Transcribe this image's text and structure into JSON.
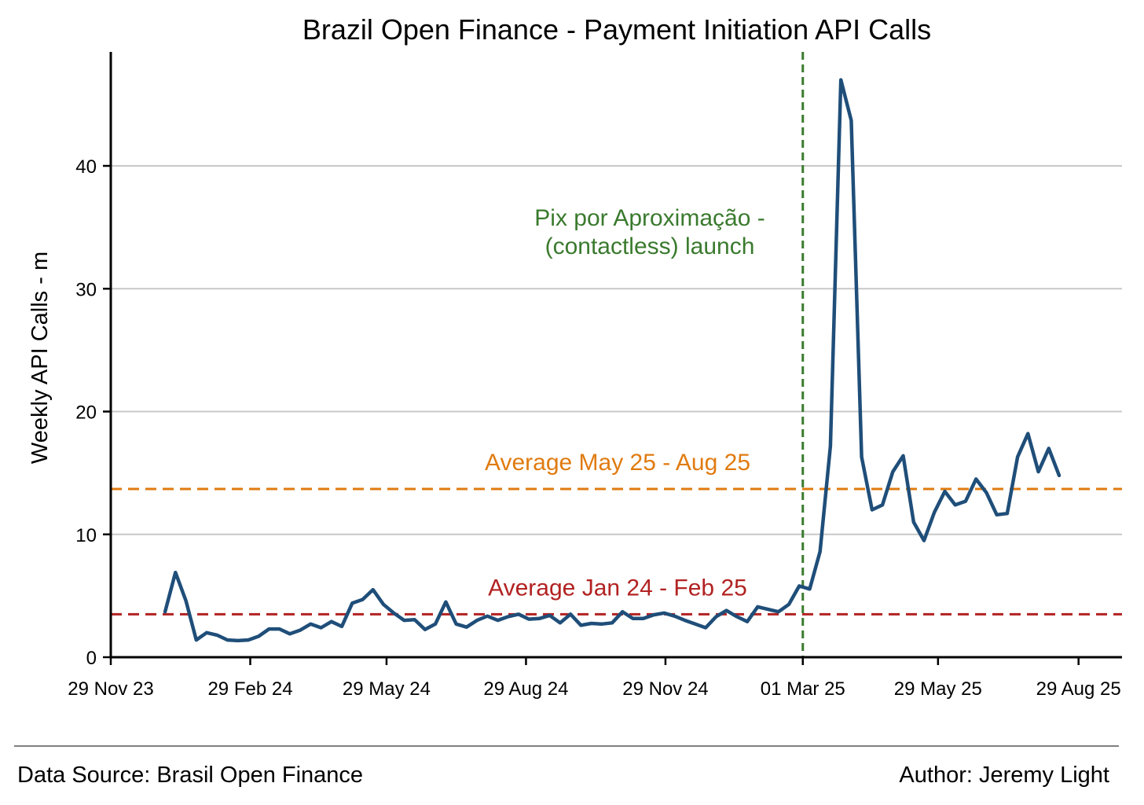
{
  "chart_data": {
    "type": "line",
    "title": "Brazil Open Finance - Payment Initiation API Calls",
    "xlabel": "",
    "ylabel": "Weekly API Calls - m",
    "ylim": [
      0,
      49
    ],
    "yticks": [
      0,
      10,
      20,
      30,
      40
    ],
    "xlim_weeks": [
      0,
      91.7
    ],
    "xticks": [
      {
        "label": "29 Nov 23",
        "week": 0
      },
      {
        "label": "29 Feb 24",
        "week": 13.1
      },
      {
        "label": "29 May 24",
        "week": 25.9
      },
      {
        "label": "29 Aug 24",
        "week": 39.0
      },
      {
        "label": "29 Nov 24",
        "week": 52.1
      },
      {
        "label": "01 Mar 25",
        "week": 65.0
      },
      {
        "label": "29 May 25",
        "week": 77.7
      },
      {
        "label": "29 Aug 25",
        "week": 90.9
      }
    ],
    "grid": "horizontal",
    "series": [
      {
        "name": "Weekly API Calls",
        "color": "#1f4e79",
        "start_week": 5.1,
        "step_weeks": 0.9765,
        "values": [
          3.7,
          6.9,
          4.6,
          1.4,
          2.0,
          1.8,
          1.4,
          1.35,
          1.4,
          1.7,
          2.3,
          2.3,
          1.9,
          2.2,
          2.7,
          2.4,
          2.9,
          2.5,
          4.4,
          4.7,
          5.5,
          4.3,
          3.6,
          3.0,
          3.05,
          2.25,
          2.7,
          4.5,
          2.7,
          2.45,
          3.0,
          3.35,
          3.0,
          3.3,
          3.5,
          3.1,
          3.15,
          3.4,
          2.8,
          3.5,
          2.6,
          2.75,
          2.7,
          2.8,
          3.7,
          3.15,
          3.15,
          3.45,
          3.6,
          3.35,
          3.0,
          2.7,
          2.4,
          3.3,
          3.8,
          3.3,
          2.9,
          4.1,
          3.9,
          3.7,
          4.3,
          5.8,
          5.55,
          8.6,
          17.2,
          47.0,
          43.7,
          16.3,
          12.0,
          12.4,
          15.1,
          16.4,
          11.0,
          9.5,
          11.8,
          13.5,
          12.4,
          12.7,
          14.5,
          13.4,
          11.6,
          11.7,
          16.3,
          18.2,
          15.1,
          17.0,
          14.8
        ]
      }
    ],
    "reference_lines": [
      {
        "name": "Average May 25 - Aug 25",
        "orientation": "horizontal",
        "value": 13.7,
        "color": "#e07b10",
        "label": "Average May 25 - Aug 25"
      },
      {
        "name": "Average Jan 24 - Feb 25",
        "orientation": "horizontal",
        "value": 3.5,
        "color": "#b22222",
        "label": "Average Jan 24 - Feb 25"
      },
      {
        "name": "Pix por Aproximação launch",
        "orientation": "vertical",
        "week": 65.0,
        "color": "#3a7a2e",
        "label_lines": [
          "Pix por Aproximação -",
          "(contactless) launch"
        ]
      }
    ]
  },
  "footer": {
    "source": "Data Source: Brasil Open Finance",
    "author": "Author: Jeremy Light"
  }
}
